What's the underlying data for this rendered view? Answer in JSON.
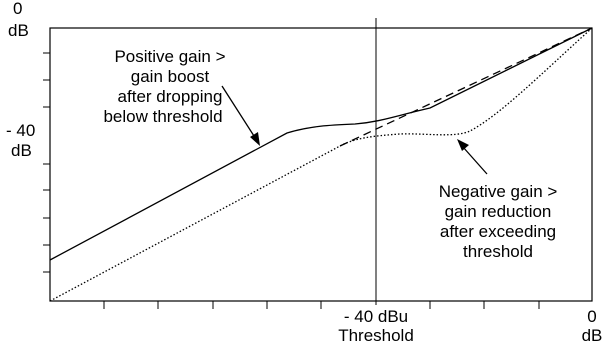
{
  "axes": {
    "y_top_value": "0",
    "y_top_unit": "dB",
    "y_mid_value": "- 40",
    "y_mid_unit": "dB",
    "x_threshold_value": "- 40 dBu",
    "x_threshold_label": "Threshold",
    "x_right_value": "0",
    "x_right_unit": "dB"
  },
  "annotations": {
    "positive": [
      "Positive gain >",
      "gain boost",
      "after dropping",
      "below threshold"
    ],
    "negative": [
      "Negative gain >",
      "gain reduction",
      "after exceeding",
      "threshold"
    ]
  },
  "curves": {
    "positive_gain": "solid",
    "unity": "dashed",
    "negative_gain": "dotted"
  }
}
